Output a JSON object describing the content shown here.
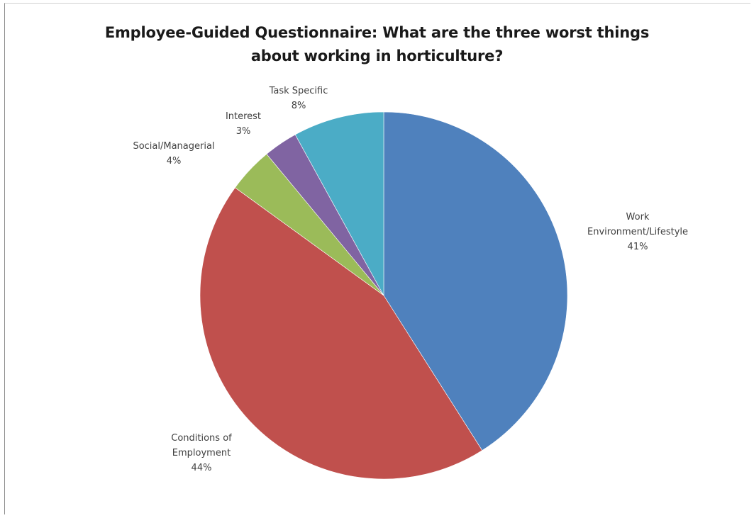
{
  "chart_data": {
    "type": "pie",
    "title_lines": [
      "Employee-Guided Questionnaire: What are the three worst things",
      "about working in horticulture?"
    ],
    "slices": [
      {
        "name": "Work Environment/Lifestyle",
        "label_lines": [
          "Work",
          "Environment/Lifestyle"
        ],
        "value": 41,
        "value_label": "41%",
        "color": "#4F81BD"
      },
      {
        "name": "Conditions of Employment",
        "label_lines": [
          "Conditions of",
          "Employment"
        ],
        "value": 44,
        "value_label": "44%",
        "color": "#C0504D"
      },
      {
        "name": "Social/Managerial",
        "label_lines": [
          "Social/Managerial"
        ],
        "value": 4,
        "value_label": "4%",
        "color": "#9BBB59"
      },
      {
        "name": "Interest",
        "label_lines": [
          "Interest"
        ],
        "value": 3,
        "value_label": "3%",
        "color": "#8064A2"
      },
      {
        "name": "Task Specific",
        "label_lines": [
          "Task Specific"
        ],
        "value": 8,
        "value_label": "8%",
        "color": "#4BACC6"
      }
    ],
    "start_angle": "12 o'clock",
    "direction": "clockwise",
    "legend": "none",
    "data_labels": "outside"
  }
}
